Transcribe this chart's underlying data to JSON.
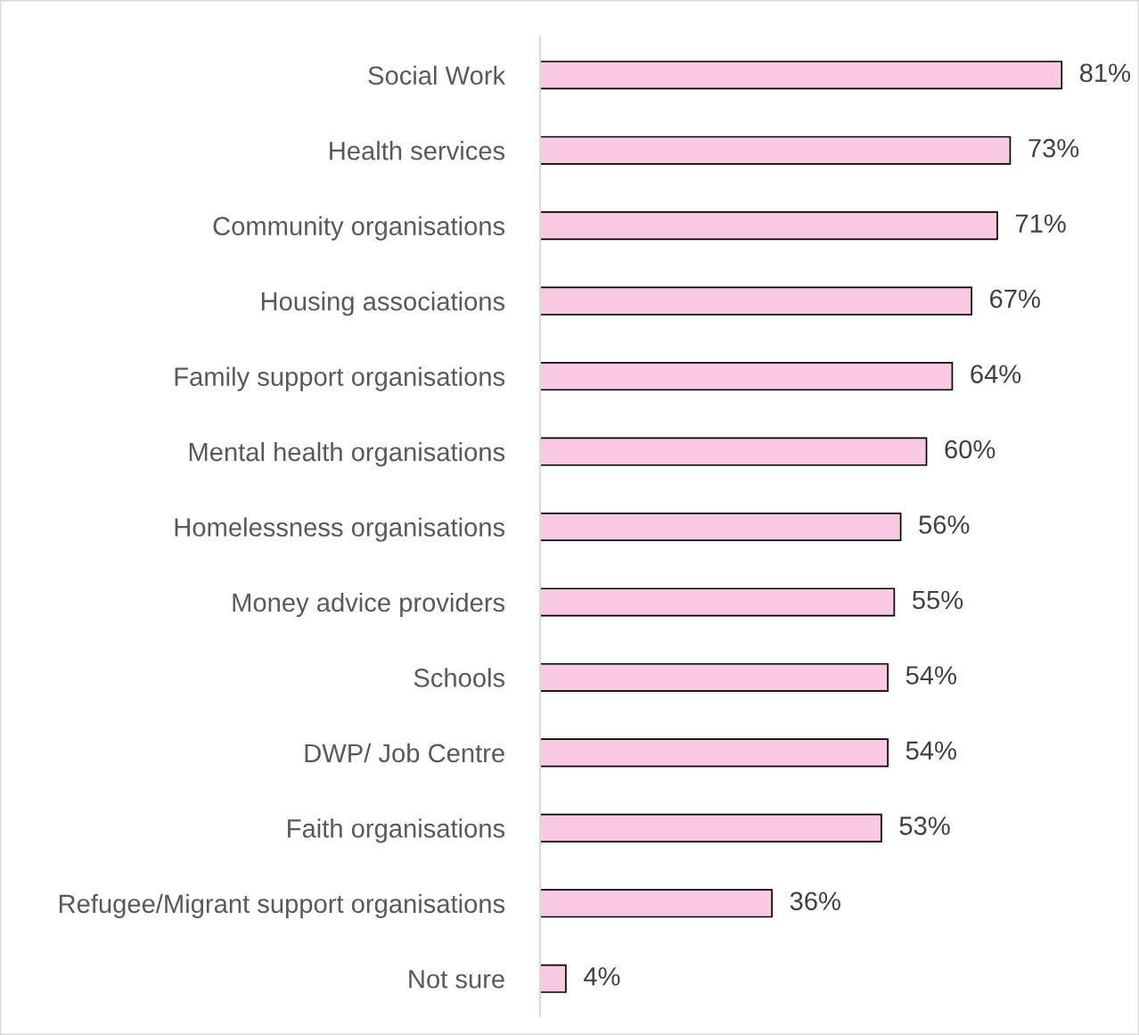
{
  "chart_data": {
    "type": "bar",
    "orientation": "horizontal",
    "categories": [
      "Social Work",
      "Health services",
      "Community organisations",
      "Housing associations",
      "Family support organisations",
      "Mental health organisations",
      "Homelessness organisations",
      "Money advice providers",
      "Schools",
      "DWP/ Job Centre",
      "Faith organisations",
      "Refugee/Migrant support organisations",
      "Not sure"
    ],
    "values": [
      81,
      73,
      71,
      67,
      64,
      60,
      56,
      55,
      54,
      54,
      53,
      36,
      4
    ],
    "value_labels": [
      "81%",
      "73%",
      "71%",
      "67%",
      "64%",
      "60%",
      "56%",
      "55%",
      "54%",
      "54%",
      "53%",
      "36%",
      "4%"
    ],
    "color": "#f9c9e1",
    "grid": false,
    "legend": false,
    "tick_labels": "y"
  }
}
